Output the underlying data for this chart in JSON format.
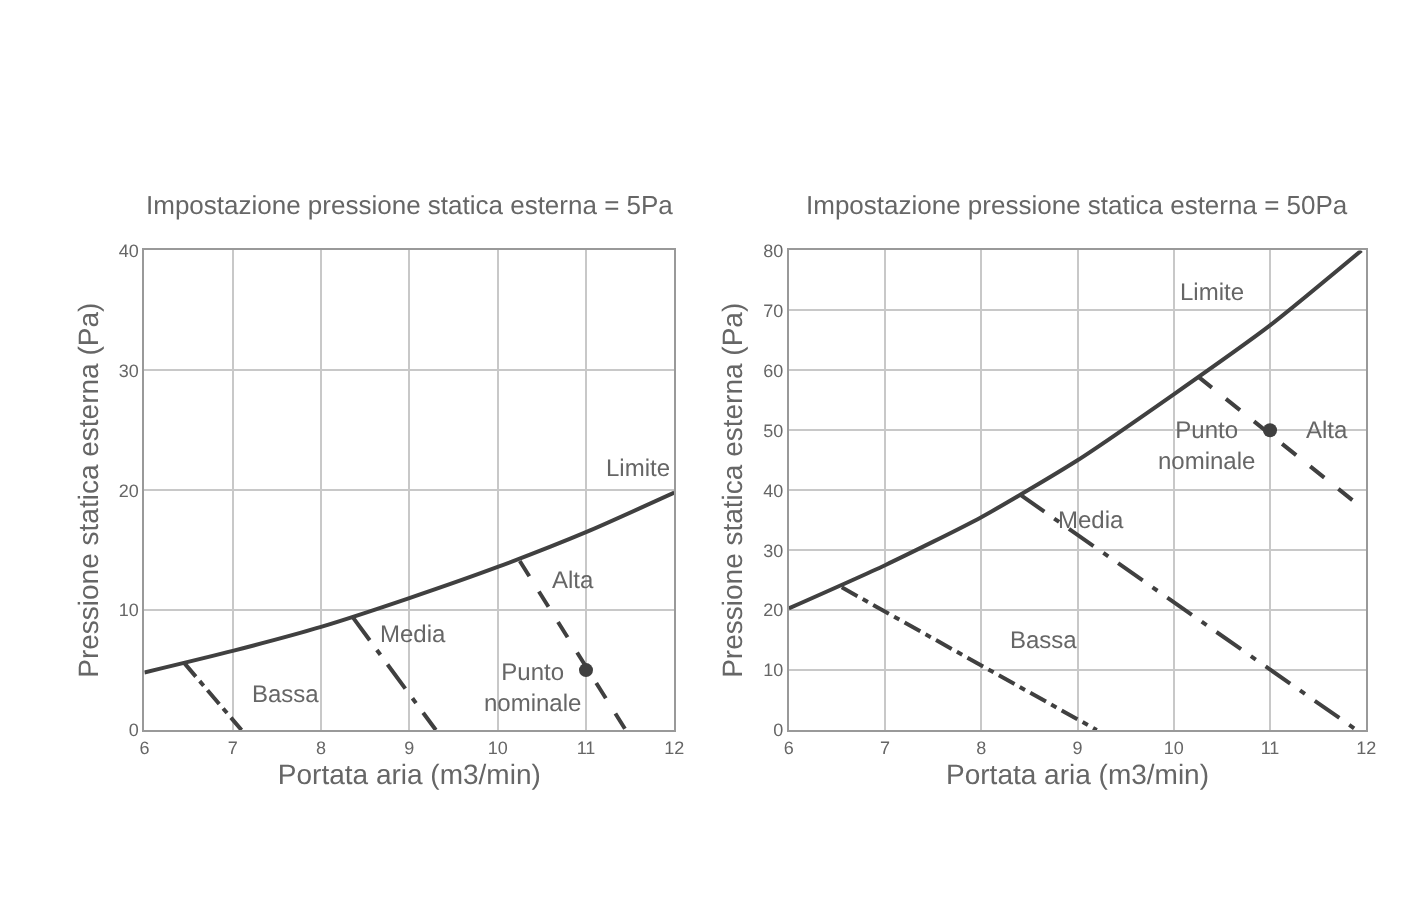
{
  "chart_data": [
    {
      "type": "line",
      "title": "Impostazione pressione statica esterna = 5Pa",
      "xlabel": "Portata aria (m3/min)",
      "ylabel": "Pressione statica esterna (Pa)",
      "xlim": [
        6,
        12
      ],
      "xticks": [
        6,
        7,
        8,
        9,
        10,
        11,
        12
      ],
      "ylim": [
        0,
        40
      ],
      "yticks": [
        0,
        10,
        20,
        30,
        40
      ],
      "grid": true,
      "series": [
        {
          "name": "Limite",
          "color": "#404040",
          "line_style": "solid",
          "x": [
            6,
            7,
            8,
            9,
            10,
            11,
            12
          ],
          "values": [
            4.8,
            6.6,
            8.6,
            11,
            13.6,
            16.5,
            19.8
          ]
        },
        {
          "name": "Bassa",
          "color": "#404040",
          "line_style": "dashdot",
          "x": [
            6.45,
            7.1
          ],
          "values": [
            5.6,
            0
          ]
        },
        {
          "name": "Media",
          "color": "#404040",
          "line_style": "longdashdot",
          "x": [
            8.35,
            9.3
          ],
          "values": [
            9.5,
            0
          ]
        },
        {
          "name": "Alta",
          "color": "#404040",
          "line_style": "dashed",
          "x": [
            10.25,
            11.45
          ],
          "values": [
            14.1,
            0
          ]
        },
        {
          "name": "Punto\nnominale",
          "type": "scatter",
          "marker": "circle",
          "color": "#404040",
          "x": [
            11
          ],
          "values": [
            5
          ]
        }
      ]
    },
    {
      "type": "line",
      "title": "Impostazione pressione statica esterna = 50Pa",
      "xlabel": "Portata aria (m3/min)",
      "ylabel": "Pressione statica esterna (Pa)",
      "xlim": [
        6,
        12
      ],
      "xticks": [
        6,
        7,
        8,
        9,
        10,
        11,
        12
      ],
      "ylim": [
        0,
        80
      ],
      "yticks": [
        0,
        10,
        20,
        30,
        40,
        50,
        60,
        70,
        80
      ],
      "grid": true,
      "series": [
        {
          "name": "Limite",
          "color": "#404040",
          "line_style": "solid",
          "x": [
            6,
            7,
            8,
            9,
            10,
            11,
            11.95
          ],
          "values": [
            20.3,
            27.5,
            35.5,
            45,
            56,
            67.5,
            80
          ]
        },
        {
          "name": "Bassa",
          "color": "#404040",
          "line_style": "dashdot",
          "x": [
            6.55,
            9.2
          ],
          "values": [
            23.8,
            0
          ]
        },
        {
          "name": "Media",
          "color": "#404040",
          "line_style": "longdashdot",
          "x": [
            8.4,
            11.9
          ],
          "values": [
            39.3,
            0
          ]
        },
        {
          "name": "Alta",
          "color": "#404040",
          "line_style": "dashed",
          "x": [
            10.25,
            12
          ],
          "values": [
            59,
            36.5
          ]
        },
        {
          "name": "Punto\nnominale",
          "type": "scatter",
          "marker": "circle",
          "color": "#404040",
          "x": [
            11
          ],
          "values": [
            50
          ]
        }
      ]
    }
  ]
}
